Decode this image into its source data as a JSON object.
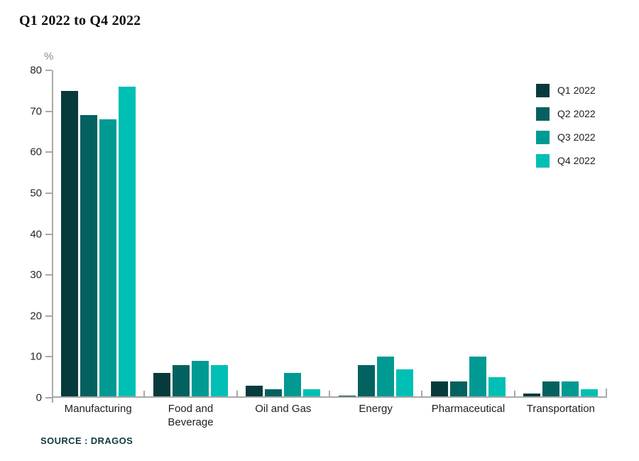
{
  "title": "Q1 2022 to Q4 2022",
  "source": "SOURCE : DRAGOS",
  "colors": {
    "axis": "#a9a9a9",
    "q1": "#073a3c",
    "q2": "#03615f",
    "q3": "#009a93",
    "q4": "#00bfb4"
  },
  "chart_data": {
    "type": "bar",
    "title": "Q1 2022 to Q4 2022",
    "unit_label": "%",
    "xlabel": "",
    "ylabel": "%",
    "ylim": [
      0,
      80
    ],
    "ytick_step": 10,
    "grid": false,
    "legend_position": "top-right",
    "categories": [
      "Manufacturing",
      "Food and Beverage",
      "Oil and Gas",
      "Energy",
      "Pharmaceutical",
      "Transportation"
    ],
    "series": [
      {
        "name": "Q1 2022",
        "color": "#073a3c",
        "values": [
          75,
          6,
          3,
          0.5,
          4,
          1
        ]
      },
      {
        "name": "Q2 2022",
        "color": "#03615f",
        "values": [
          69,
          8,
          2,
          8,
          4,
          4
        ]
      },
      {
        "name": "Q3 2022",
        "color": "#009a93",
        "values": [
          68,
          9,
          6,
          10,
          10,
          4
        ]
      },
      {
        "name": "Q4 2022",
        "color": "#00bfb4",
        "values": [
          76,
          8,
          2,
          7,
          5,
          2
        ]
      }
    ]
  }
}
